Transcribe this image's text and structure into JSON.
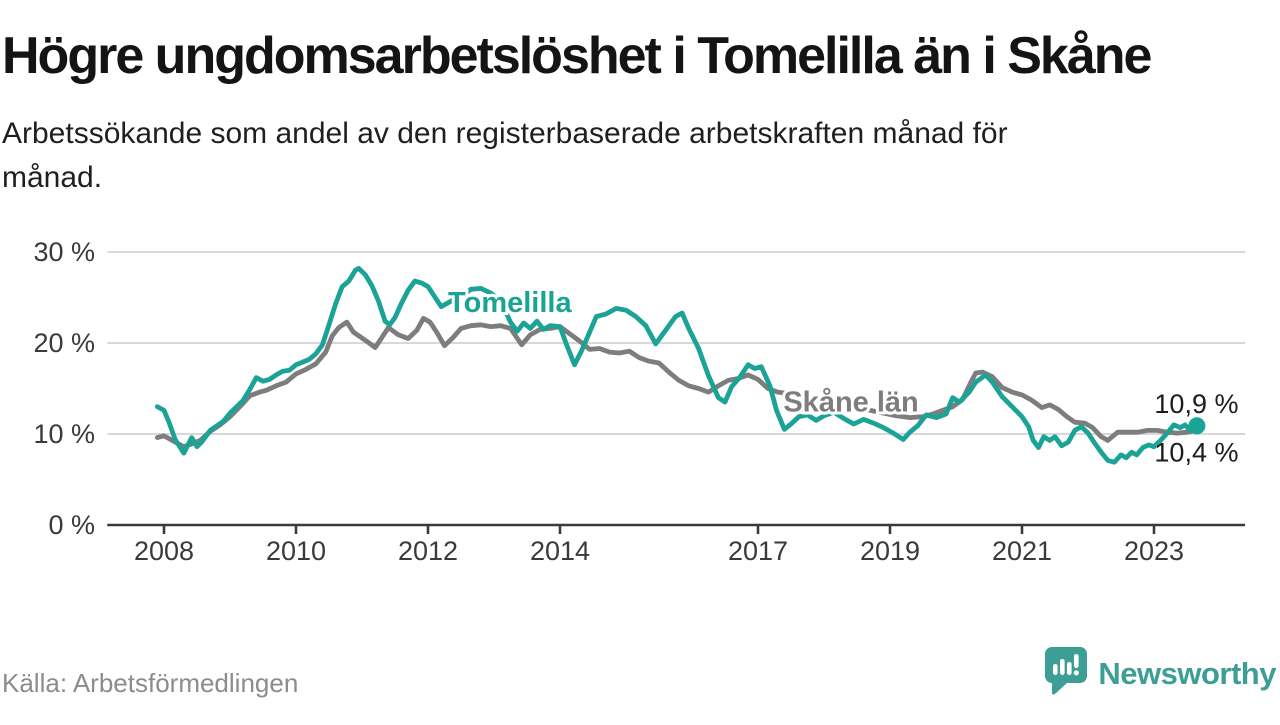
{
  "header": {
    "title": "Högre ungdomsarbetslöshet i Tomelilla än i Skåne",
    "subtitle_line1": "Arbetssökande som andel av den registerbaserade arbetskraften månad för",
    "subtitle_line2": "månad."
  },
  "footer": {
    "source": "Källa: Arbetsförmedlingen",
    "brand": "Newsworthy"
  },
  "colors": {
    "tomelilla": "#1aa396",
    "skane": "#7d7d7d",
    "grid": "#d8d8d8",
    "axis": "#3a3a3a",
    "value_label": "#1c1c1c",
    "brand_teal": "#3d9e96"
  },
  "chart_data": {
    "type": "line",
    "title": "Högre ungdomsarbetslöshet i Tomelilla än i Skåne",
    "xlabel": "",
    "ylabel": "",
    "grid": "horizontal",
    "legend_position": "inline-labels",
    "x_axis": {
      "range": [
        2007.14,
        2024.38
      ],
      "ticks": [
        2008,
        2010,
        2012,
        2014,
        2017,
        2019,
        2021,
        2023
      ],
      "tick_labels": [
        "2008",
        "2010",
        "2012",
        "2014",
        "2017",
        "2019",
        "2021",
        "2023"
      ]
    },
    "y_axis": {
      "range": [
        0,
        30.2
      ],
      "ticks": [
        0,
        10,
        20,
        30
      ],
      "tick_labels": [
        "0 %",
        "10 %",
        "20 %",
        "30 %"
      ]
    },
    "series": [
      {
        "name": "Skåne län",
        "color": "#7d7d7d",
        "end_value_label": "10,4 %",
        "points": [
          [
            2007.9,
            9.6
          ],
          [
            2008.0,
            9.8
          ],
          [
            2008.1,
            9.4
          ],
          [
            2008.2,
            9.0
          ],
          [
            2008.3,
            8.6
          ],
          [
            2008.42,
            8.9
          ],
          [
            2008.55,
            9.3
          ],
          [
            2008.7,
            10.3
          ],
          [
            2008.85,
            11.0
          ],
          [
            2009.0,
            11.9
          ],
          [
            2009.15,
            13.0
          ],
          [
            2009.3,
            14.2
          ],
          [
            2009.45,
            14.6
          ],
          [
            2009.55,
            14.8
          ],
          [
            2009.7,
            15.3
          ],
          [
            2009.85,
            15.7
          ],
          [
            2010.0,
            16.6
          ],
          [
            2010.15,
            17.1
          ],
          [
            2010.3,
            17.7
          ],
          [
            2010.45,
            19.0
          ],
          [
            2010.55,
            20.8
          ],
          [
            2010.65,
            21.7
          ],
          [
            2010.77,
            22.3
          ],
          [
            2010.87,
            21.2
          ],
          [
            2010.97,
            20.7
          ],
          [
            2011.07,
            20.2
          ],
          [
            2011.2,
            19.5
          ],
          [
            2011.32,
            20.8
          ],
          [
            2011.4,
            21.7
          ],
          [
            2011.55,
            20.9
          ],
          [
            2011.7,
            20.5
          ],
          [
            2011.83,
            21.4
          ],
          [
            2011.93,
            22.7
          ],
          [
            2012.03,
            22.3
          ],
          [
            2012.13,
            21.2
          ],
          [
            2012.25,
            19.7
          ],
          [
            2012.38,
            20.6
          ],
          [
            2012.5,
            21.6
          ],
          [
            2012.65,
            21.9
          ],
          [
            2012.8,
            22.0
          ],
          [
            2012.95,
            21.8
          ],
          [
            2013.1,
            21.9
          ],
          [
            2013.25,
            21.6
          ],
          [
            2013.42,
            19.8
          ],
          [
            2013.55,
            20.9
          ],
          [
            2013.7,
            21.5
          ],
          [
            2013.85,
            21.6
          ],
          [
            2014.0,
            21.8
          ],
          [
            2014.15,
            21.0
          ],
          [
            2014.3,
            20.2
          ],
          [
            2014.45,
            19.3
          ],
          [
            2014.6,
            19.4
          ],
          [
            2014.75,
            19.0
          ],
          [
            2014.9,
            18.9
          ],
          [
            2015.05,
            19.1
          ],
          [
            2015.2,
            18.4
          ],
          [
            2015.35,
            18.0
          ],
          [
            2015.5,
            17.8
          ],
          [
            2015.65,
            16.8
          ],
          [
            2015.8,
            15.9
          ],
          [
            2015.95,
            15.3
          ],
          [
            2016.1,
            15.0
          ],
          [
            2016.25,
            14.6
          ],
          [
            2016.4,
            15.3
          ],
          [
            2016.55,
            15.9
          ],
          [
            2016.7,
            16.1
          ],
          [
            2016.85,
            16.5
          ],
          [
            2017.0,
            16.0
          ],
          [
            2017.15,
            15.0
          ],
          [
            2017.3,
            14.6
          ],
          [
            2017.5,
            14.4
          ],
          [
            2017.7,
            14.1
          ],
          [
            2017.9,
            13.7
          ],
          [
            2018.1,
            13.4
          ],
          [
            2018.3,
            13.0
          ],
          [
            2018.5,
            12.8
          ],
          [
            2018.7,
            12.6
          ],
          [
            2018.9,
            12.3
          ],
          [
            2019.1,
            12.0
          ],
          [
            2019.3,
            11.8
          ],
          [
            2019.5,
            11.9
          ],
          [
            2019.65,
            12.2
          ],
          [
            2019.8,
            12.6
          ],
          [
            2019.95,
            13.0
          ],
          [
            2020.1,
            13.8
          ],
          [
            2020.22,
            15.6
          ],
          [
            2020.3,
            16.7
          ],
          [
            2020.4,
            16.8
          ],
          [
            2020.55,
            16.3
          ],
          [
            2020.7,
            15.1
          ],
          [
            2020.85,
            14.6
          ],
          [
            2021.0,
            14.3
          ],
          [
            2021.15,
            13.7
          ],
          [
            2021.3,
            12.9
          ],
          [
            2021.42,
            13.2
          ],
          [
            2021.55,
            12.7
          ],
          [
            2021.68,
            11.9
          ],
          [
            2021.8,
            11.3
          ],
          [
            2021.95,
            11.2
          ],
          [
            2022.07,
            10.7
          ],
          [
            2022.2,
            9.7
          ],
          [
            2022.3,
            9.3
          ],
          [
            2022.45,
            10.2
          ],
          [
            2022.6,
            10.2
          ],
          [
            2022.75,
            10.2
          ],
          [
            2022.9,
            10.4
          ],
          [
            2023.05,
            10.4
          ],
          [
            2023.2,
            10.2
          ],
          [
            2023.35,
            10.1
          ],
          [
            2023.5,
            10.2
          ],
          [
            2023.65,
            10.4
          ]
        ]
      },
      {
        "name": "Tomelilla",
        "color": "#1aa396",
        "end_dot": true,
        "end_value_label": "10,9 %",
        "points": [
          [
            2007.9,
            13.0
          ],
          [
            2008.0,
            12.6
          ],
          [
            2008.08,
            11.2
          ],
          [
            2008.17,
            9.4
          ],
          [
            2008.3,
            7.9
          ],
          [
            2008.42,
            9.6
          ],
          [
            2008.5,
            8.6
          ],
          [
            2008.58,
            9.2
          ],
          [
            2008.7,
            10.4
          ],
          [
            2008.8,
            10.9
          ],
          [
            2008.9,
            11.4
          ],
          [
            2009.0,
            12.3
          ],
          [
            2009.1,
            13.0
          ],
          [
            2009.2,
            13.7
          ],
          [
            2009.3,
            14.9
          ],
          [
            2009.4,
            16.2
          ],
          [
            2009.5,
            15.8
          ],
          [
            2009.6,
            16.0
          ],
          [
            2009.7,
            16.5
          ],
          [
            2009.8,
            16.9
          ],
          [
            2009.9,
            17.0
          ],
          [
            2010.0,
            17.6
          ],
          [
            2010.1,
            17.9
          ],
          [
            2010.2,
            18.2
          ],
          [
            2010.3,
            18.8
          ],
          [
            2010.4,
            19.8
          ],
          [
            2010.5,
            22.0
          ],
          [
            2010.6,
            24.3
          ],
          [
            2010.7,
            26.2
          ],
          [
            2010.8,
            26.8
          ],
          [
            2010.9,
            28.0
          ],
          [
            2010.95,
            28.2
          ],
          [
            2011.05,
            27.5
          ],
          [
            2011.15,
            26.3
          ],
          [
            2011.25,
            24.6
          ],
          [
            2011.35,
            22.4
          ],
          [
            2011.42,
            22.0
          ],
          [
            2011.5,
            22.8
          ],
          [
            2011.6,
            24.4
          ],
          [
            2011.7,
            25.8
          ],
          [
            2011.8,
            26.8
          ],
          [
            2011.9,
            26.6
          ],
          [
            2012.0,
            26.2
          ],
          [
            2012.1,
            25.1
          ],
          [
            2012.2,
            24.0
          ],
          [
            2012.35,
            24.6
          ],
          [
            2012.5,
            25.1
          ],
          [
            2012.65,
            25.9
          ],
          [
            2012.8,
            26.0
          ],
          [
            2012.95,
            25.5
          ],
          [
            2013.1,
            24.6
          ],
          [
            2013.25,
            22.3
          ],
          [
            2013.35,
            21.3
          ],
          [
            2013.45,
            22.2
          ],
          [
            2013.55,
            21.6
          ],
          [
            2013.65,
            22.4
          ],
          [
            2013.75,
            21.5
          ],
          [
            2013.85,
            21.9
          ],
          [
            2014.0,
            21.8
          ],
          [
            2014.1,
            19.8
          ],
          [
            2014.22,
            17.6
          ],
          [
            2014.33,
            19.2
          ],
          [
            2014.45,
            21.2
          ],
          [
            2014.55,
            22.9
          ],
          [
            2014.7,
            23.2
          ],
          [
            2014.85,
            23.8
          ],
          [
            2015.0,
            23.6
          ],
          [
            2015.15,
            22.9
          ],
          [
            2015.3,
            21.9
          ],
          [
            2015.45,
            19.9
          ],
          [
            2015.6,
            21.4
          ],
          [
            2015.75,
            22.9
          ],
          [
            2015.85,
            23.3
          ],
          [
            2015.95,
            21.6
          ],
          [
            2016.1,
            19.4
          ],
          [
            2016.25,
            16.4
          ],
          [
            2016.4,
            14.0
          ],
          [
            2016.5,
            13.5
          ],
          [
            2016.6,
            15.2
          ],
          [
            2016.72,
            16.2
          ],
          [
            2016.85,
            17.6
          ],
          [
            2016.95,
            17.2
          ],
          [
            2017.05,
            17.4
          ],
          [
            2017.18,
            15.3
          ],
          [
            2017.28,
            12.6
          ],
          [
            2017.4,
            10.5
          ],
          [
            2017.5,
            11.1
          ],
          [
            2017.62,
            11.9
          ],
          [
            2017.75,
            12.1
          ],
          [
            2017.88,
            11.5
          ],
          [
            2018.0,
            12.0
          ],
          [
            2018.15,
            12.4
          ],
          [
            2018.3,
            11.7
          ],
          [
            2018.45,
            11.1
          ],
          [
            2018.6,
            11.6
          ],
          [
            2018.75,
            11.2
          ],
          [
            2018.9,
            10.7
          ],
          [
            2019.05,
            10.1
          ],
          [
            2019.2,
            9.4
          ],
          [
            2019.3,
            10.2
          ],
          [
            2019.42,
            10.9
          ],
          [
            2019.55,
            12.1
          ],
          [
            2019.7,
            11.8
          ],
          [
            2019.85,
            12.2
          ],
          [
            2019.95,
            14.0
          ],
          [
            2020.05,
            13.5
          ],
          [
            2020.2,
            14.6
          ],
          [
            2020.3,
            15.7
          ],
          [
            2020.45,
            16.5
          ],
          [
            2020.55,
            15.7
          ],
          [
            2020.7,
            14.1
          ],
          [
            2020.85,
            13.0
          ],
          [
            2021.0,
            11.9
          ],
          [
            2021.1,
            10.8
          ],
          [
            2021.17,
            9.3
          ],
          [
            2021.25,
            8.5
          ],
          [
            2021.33,
            9.7
          ],
          [
            2021.42,
            9.3
          ],
          [
            2021.5,
            9.7
          ],
          [
            2021.6,
            8.7
          ],
          [
            2021.7,
            9.1
          ],
          [
            2021.8,
            10.4
          ],
          [
            2021.9,
            10.8
          ],
          [
            2022.0,
            10.1
          ],
          [
            2022.1,
            9.0
          ],
          [
            2022.2,
            8.0
          ],
          [
            2022.3,
            7.1
          ],
          [
            2022.4,
            6.9
          ],
          [
            2022.5,
            7.7
          ],
          [
            2022.58,
            7.4
          ],
          [
            2022.66,
            8.0
          ],
          [
            2022.74,
            7.7
          ],
          [
            2022.83,
            8.5
          ],
          [
            2022.92,
            8.8
          ],
          [
            2023.0,
            8.6
          ],
          [
            2023.1,
            9.3
          ],
          [
            2023.2,
            10.1
          ],
          [
            2023.3,
            11.0
          ],
          [
            2023.4,
            10.7
          ],
          [
            2023.47,
            11.0
          ],
          [
            2023.55,
            10.4
          ],
          [
            2023.65,
            10.9
          ]
        ]
      }
    ],
    "annotations": [
      {
        "text": "Tomelilla",
        "year": 2013.24,
        "pct": 23.4,
        "color": "#1aa396",
        "anchor": "middle",
        "size": 29,
        "weight": "bold",
        "halo": true
      },
      {
        "text": "Skåne län",
        "year": 2018.41,
        "pct": 12.5,
        "color": "#7d7d7d",
        "anchor": "middle",
        "size": 29,
        "weight": "bold",
        "halo": true
      },
      {
        "text": "10,9 %",
        "year": 2024.28,
        "pct": 12.3,
        "color": "#1c1c1c",
        "anchor": "end",
        "size": 27,
        "weight": "normal",
        "halo": false
      },
      {
        "text": "10,4 %",
        "year": 2024.28,
        "pct": 7.0,
        "color": "#1c1c1c",
        "anchor": "end",
        "size": 27,
        "weight": "normal",
        "halo": false
      }
    ]
  }
}
